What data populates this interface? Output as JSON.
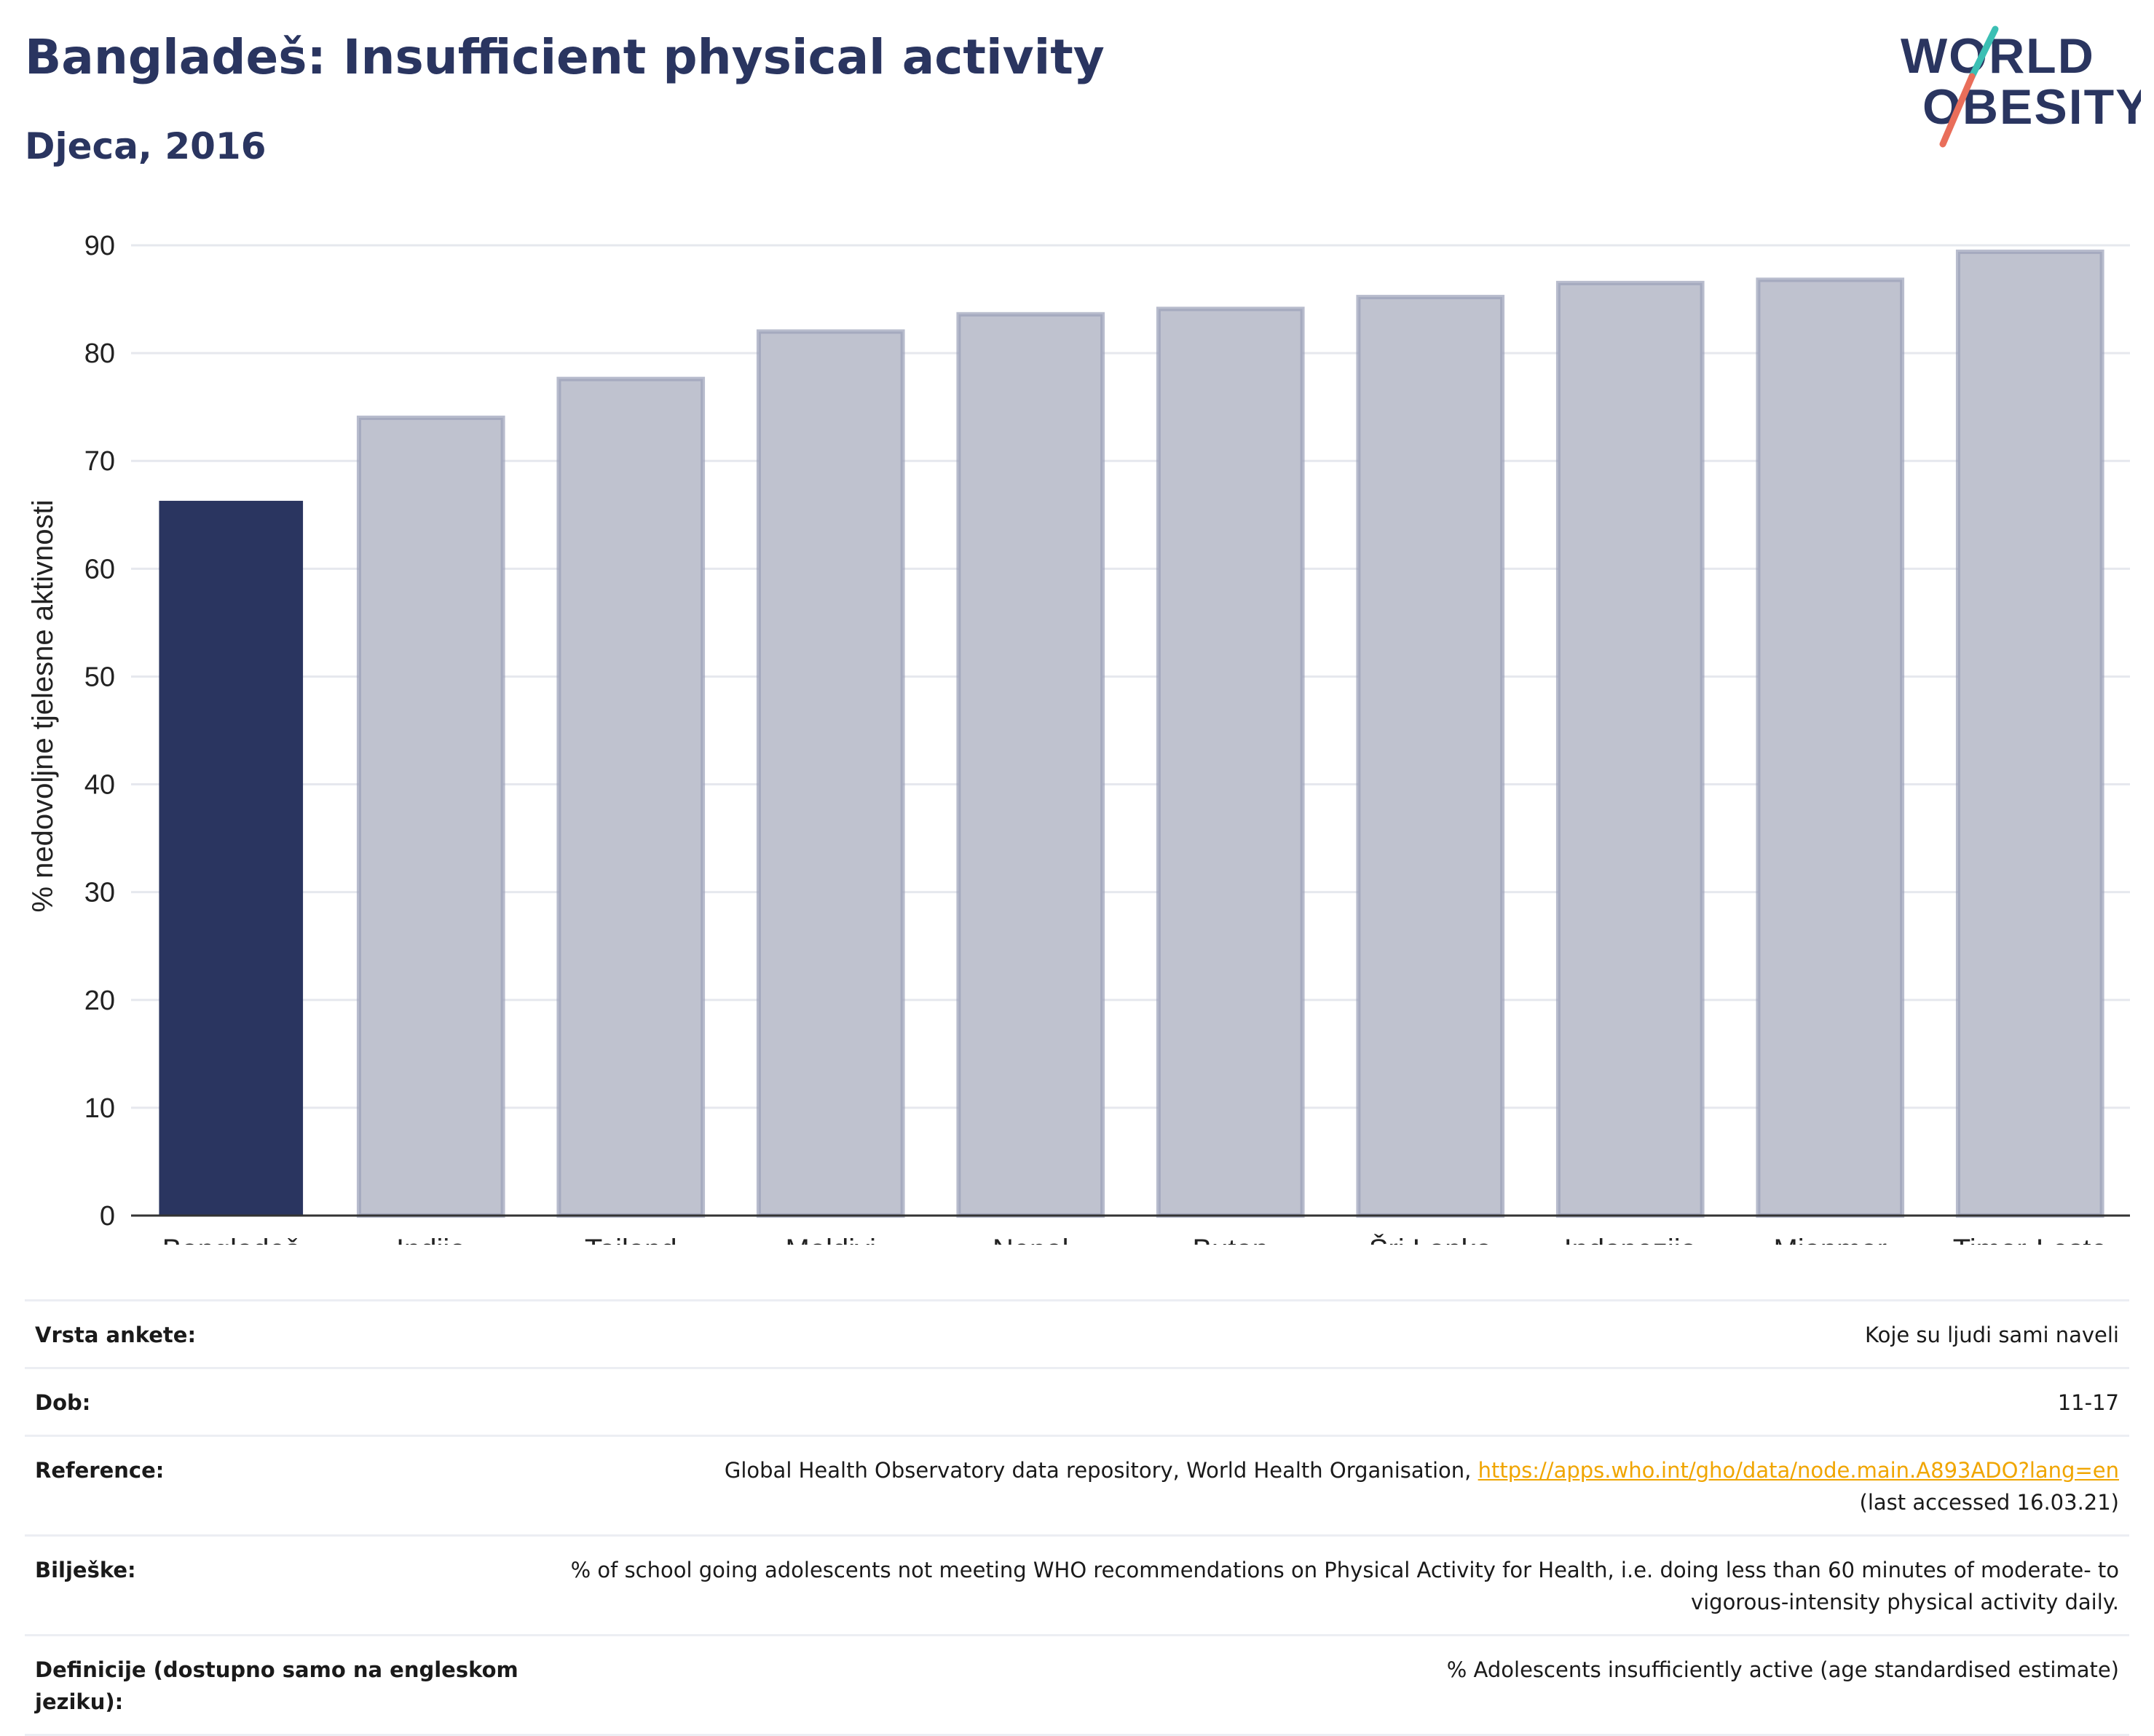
{
  "header": {
    "title": "Bangladeš: Insufficient physical activity",
    "subtitle": "Djeca, 2016",
    "logo_line1": "WORLD",
    "logo_line2": "OBESITY"
  },
  "colors": {
    "highlight": "#2a3560",
    "bar": "#bfc2cf",
    "bar_edge": "#9aa0b8",
    "grid": "#e6e8ee",
    "logo_navy": "#2a3560",
    "logo_teal": "#3bbfb4",
    "logo_coral": "#e96e5a",
    "link": "#f0a500"
  },
  "chart_data": {
    "type": "bar",
    "categories": [
      "Bangladeš",
      "Indija",
      "Tajland",
      "Maldivi",
      "Nepal",
      "Butan",
      "Šri Lanka",
      "Indonezija",
      "Mjanmar",
      "Timor-Leste"
    ],
    "values": [
      66.3,
      74.0,
      77.6,
      82.0,
      83.6,
      84.1,
      85.2,
      86.5,
      86.8,
      89.4
    ],
    "highlight_index": 0,
    "ylabel": "% nedovoljne tjelesne aktivnosti",
    "ylim": [
      0,
      90
    ],
    "yticks": [
      "0",
      "10",
      "20",
      "30",
      "40",
      "50",
      "60",
      "70",
      "80",
      "90"
    ],
    "grid": true
  },
  "footer": {
    "survey_label": "Vrsta ankete:",
    "survey_value": "Koje su ljudi sami naveli",
    "age_label": "Dob:",
    "age_value": "11-17",
    "ref_label": "Reference:",
    "ref_text": "Global Health Observatory data repository, World Health Organisation, ",
    "ref_link": "https://apps.who.int/gho/data/node.main.A893ADO?lang=en",
    "ref_accessed": "(last accessed 16.03.21)",
    "notes_label": "Bilješke:",
    "notes_value": "% of school going adolescents not meeting WHO recommendations on Physical Activity for Health, i.e. doing less than 60 minutes of moderate- to vigorous-intensity physical activity daily.",
    "def_label": "Definicije (dostupno samo na engleskom jeziku):",
    "def_value": "% Adolescents insufficiently active (age standardised estimate)"
  }
}
